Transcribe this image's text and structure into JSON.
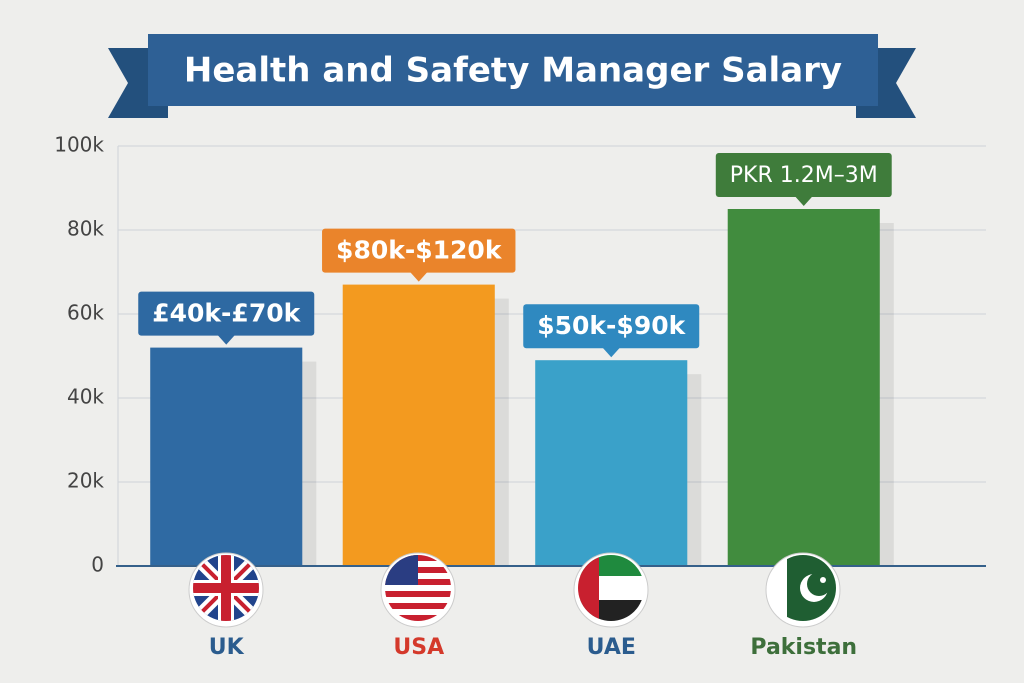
{
  "chart_data": {
    "type": "bar",
    "title": "Health and Safety Manager Salary",
    "categories": [
      "UK",
      "USA",
      "UAE",
      "Pakistan"
    ],
    "values": [
      52,
      67,
      49,
      85
    ],
    "colors": [
      "#2f6aa3",
      "#f39a1f",
      "#3aa1c9",
      "#418c3e"
    ],
    "category_colors": [
      "#2b5c8e",
      "#d4392b",
      "#2b5c8e",
      "#3d6f3b"
    ],
    "annotations": [
      "£40k-£70k",
      "$80k-$120k",
      "$50k-$90k",
      "PKR 1.2M–3M"
    ],
    "annotation_colors": [
      "#2e69a2",
      "#ea842b",
      "#2f89c0",
      "#3f7c3b"
    ],
    "ylim": [
      0,
      100
    ],
    "yticks": [
      0,
      {
        "value": 20,
        "label": "20k"
      },
      {
        "value": 40,
        "label": "40k"
      },
      {
        "value": 60,
        "label": "60k"
      },
      {
        "value": 80,
        "label": "80k"
      },
      {
        "value": 100,
        "label": "100k"
      }
    ],
    "grid": true
  }
}
